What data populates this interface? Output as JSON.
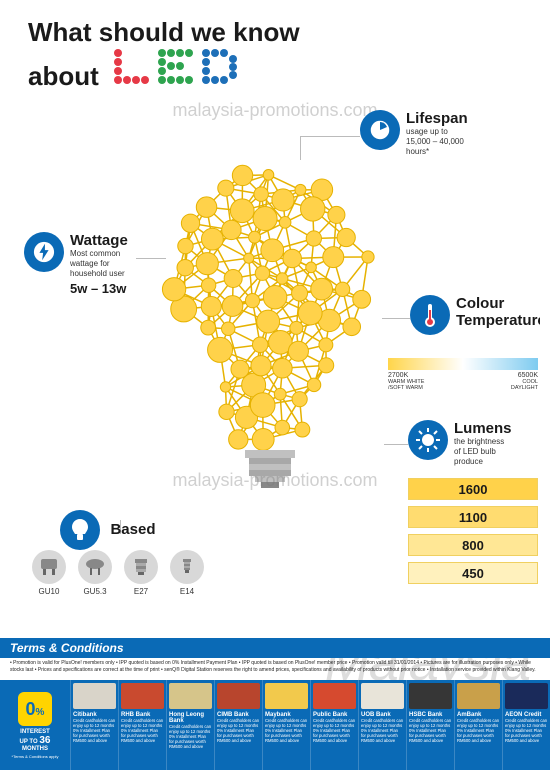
{
  "header": {
    "line1": "What should we know",
    "line2_prefix": "about",
    "led_colors": [
      "#e63946",
      "#2ea44f",
      "#1d6fb8",
      "#1d6fb8"
    ],
    "led_letters": [
      "L",
      "E",
      "D"
    ],
    "text_color": "#1a1a1a",
    "font_size_pt": 26
  },
  "watermark": {
    "text": "malaysia-promotions.com",
    "big_text": "Malaysia",
    "color": "rgba(120,120,120,.35)"
  },
  "bulb": {
    "node_fill": "#ffd24a",
    "node_stroke": "#e6b200",
    "edge_color": "#e6b200",
    "bg": "#ffffff"
  },
  "lifespan": {
    "title": "Lifespan",
    "desc1": "usage up to",
    "desc2": "15,000 – 40,000",
    "desc3": "hours*",
    "icon_color": "#0a6ab6"
  },
  "wattage": {
    "title": "Wattage",
    "desc1": "Most common",
    "desc2": "wattage for",
    "desc3": "household user",
    "range": "5w – 13w",
    "icon_color": "#0a6ab6"
  },
  "colortemp": {
    "title": "Colour",
    "title2": "Temperature",
    "warm_k": "2700K",
    "cool_k": "6500K",
    "warm_lbl1": "WARM WHITE",
    "warm_lbl2": "/SOFT WARM",
    "cool_lbl1": "COOL",
    "cool_lbl2": "DAYLIGHT",
    "grad_from": "#ffd54a",
    "grad_mid": "#ffffff",
    "grad_to": "#7ecbf0"
  },
  "lumens": {
    "title": "Lumens",
    "desc1": "the brightness",
    "desc2": "of LED bulb",
    "desc3": "produce",
    "values": [
      "1600",
      "1100",
      "800",
      "450"
    ],
    "box_bgs": [
      "#ffd24a",
      "#ffdc70",
      "#ffe795",
      "#fff1bd"
    ],
    "box_border": "#f0d060"
  },
  "based": {
    "title": "Based",
    "types": [
      "GU10",
      "GU5.3",
      "E27",
      "E14"
    ]
  },
  "footer": {
    "tc_title": "Terms & Conditions",
    "tc_body": "• Promotion is valid for PlusOne! members only • IPP quoted is based on 0% Installment Payment Plan • IPP quoted is based on PlusOne! member price • Promotion valid till 31/01/2014 • Pictures are for illustration purposes only • While stocks last • Prices and specifications are correct at the time of print • senQ® Digital Station reserves the right to amend prices, specifications and availability of products without prior notice • Installation service provided within Klang Valley.",
    "interest_num": "0",
    "interest_pct": "%",
    "interest_label1": "INTEREST",
    "interest_label2": "UP TO",
    "interest_months": "36",
    "interest_months_suffix": "MONTHS",
    "apply_note": "*Terms & Conditions apply",
    "bank_desc_generic": "Credit cardholders can enjoy up to 12 months 0% Installment Plan for purchases worth RM500 and above",
    "banks": [
      {
        "name": "Citibank",
        "card_bg": "#d9d4c9"
      },
      {
        "name": "RHB Bank",
        "card_bg": "#c94a2f"
      },
      {
        "name": "Hong Leong Bank",
        "card_bg": "#d6c58a"
      },
      {
        "name": "CIMB Bank",
        "card_bg": "#b8452d"
      },
      {
        "name": "Maybank",
        "card_bg": "#f2c94c"
      },
      {
        "name": "Public Bank",
        "card_bg": "#d64a2f"
      },
      {
        "name": "UOB Bank",
        "card_bg": "#e8e4d9"
      },
      {
        "name": "HSBC Bank",
        "card_bg": "#363636"
      },
      {
        "name": "AmBank",
        "card_bg": "#c9a04a"
      },
      {
        "name": "AEON Credit",
        "card_bg": "#1a2a5a"
      }
    ]
  }
}
